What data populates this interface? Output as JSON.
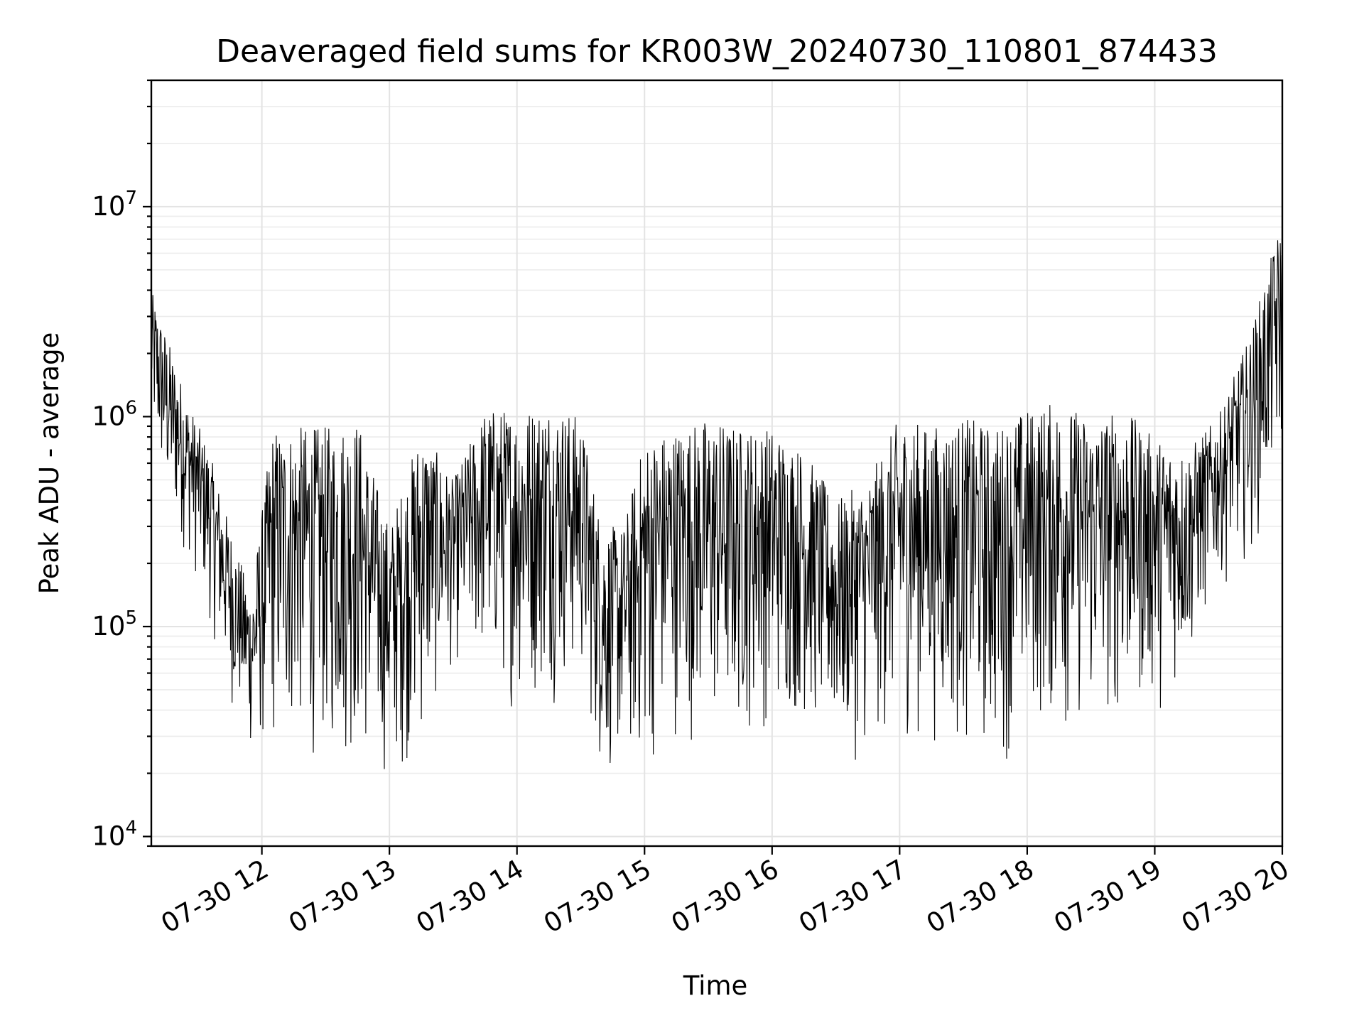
{
  "chart_data": {
    "type": "line",
    "title": "Deaveraged field sums for KR003W_20240730_110801_874433",
    "xlabel": "Time",
    "ylabel": "Peak ADU - average",
    "yscale": "log",
    "ylim": [
      9000,
      40000000
    ],
    "xlim": [
      "2024-07-30 11:08",
      "2024-07-30 20:00"
    ],
    "grid": true,
    "legend": "none",
    "line_color": "#000000",
    "x_ticks": [
      "07-30 12",
      "07-30 13",
      "07-30 14",
      "07-30 15",
      "07-30 16",
      "07-30 17",
      "07-30 18",
      "07-30 19",
      "07-30 20"
    ],
    "y_ticks": [
      {
        "base": "10",
        "exp": "4",
        "value": 10000
      },
      {
        "base": "10",
        "exp": "5",
        "value": 100000
      },
      {
        "base": "10",
        "exp": "6",
        "value": 1000000
      },
      {
        "base": "10",
        "exp": "7",
        "value": 10000000
      }
    ],
    "series": [
      {
        "x": [
          "2024-07-30 11:08",
          "2024-07-30 11:15",
          "2024-07-30 11:25",
          "2024-07-30 11:35",
          "2024-07-30 11:45",
          "2024-07-30 11:55",
          "2024-07-30 12:05",
          "2024-07-30 12:15",
          "2024-07-30 12:30",
          "2024-07-30 12:45",
          "2024-07-30 13:00",
          "2024-07-30 13:15",
          "2024-07-30 13:30",
          "2024-07-30 13:45",
          "2024-07-30 14:00",
          "2024-07-30 14:15",
          "2024-07-30 14:30",
          "2024-07-30 14:40",
          "2024-07-30 14:50",
          "2024-07-30 15:00",
          "2024-07-30 15:15",
          "2024-07-30 15:30",
          "2024-07-30 15:45",
          "2024-07-30 16:00",
          "2024-07-30 16:15",
          "2024-07-30 16:30",
          "2024-07-30 16:45",
          "2024-07-30 17:00",
          "2024-07-30 17:15",
          "2024-07-30 17:30",
          "2024-07-30 17:45",
          "2024-07-30 18:00",
          "2024-07-30 18:15",
          "2024-07-30 18:30",
          "2024-07-30 18:45",
          "2024-07-30 19:00",
          "2024-07-30 19:15",
          "2024-07-30 19:30",
          "2024-07-30 19:45",
          "2024-07-30 20:00"
        ],
        "upper": [
          4000000,
          2500000,
          1200000,
          700000,
          300000,
          140000,
          900000,
          900000,
          900000,
          1000000,
          300000,
          900000,
          500000,
          1100000,
          1100000,
          1200000,
          1000000,
          300000,
          300000,
          800000,
          900000,
          1000000,
          900000,
          900000,
          700000,
          400000,
          500000,
          1000000,
          900000,
          1000000,
          900000,
          1100000,
          1200000,
          1000000,
          1100000,
          800000,
          700000,
          1000000,
          2500000,
          9000000
        ],
        "lower": [
          700000,
          300000,
          200000,
          100000,
          40000,
          22000,
          20000,
          22000,
          20000,
          18000,
          17000,
          22000,
          60000,
          50000,
          35000,
          40000,
          45000,
          16000,
          18000,
          16000,
          28000,
          22000,
          25000,
          30000,
          30000,
          20000,
          22000,
          26000,
          25000,
          22000,
          18000,
          28000,
          25000,
          28000,
          30000,
          35000,
          50000,
          150000,
          200000,
          500000
        ]
      }
    ]
  }
}
